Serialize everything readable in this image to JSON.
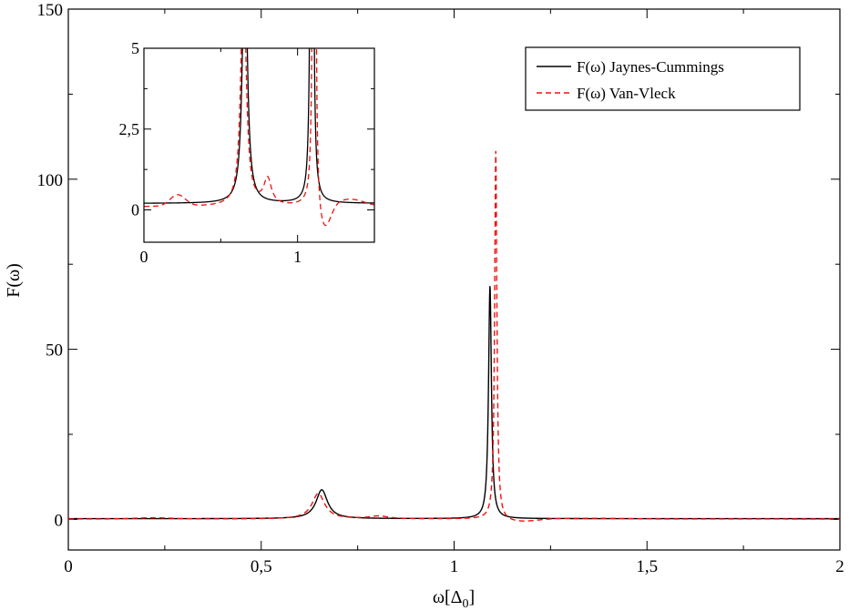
{
  "chart_data": {
    "type": "line",
    "xlabel": "ω[Δ0]",
    "xlabel_main": "ω[Δ",
    "xlabel_sub": "0",
    "xlabel_close": "]",
    "ylabel": "F(ω)",
    "xlim": [
      0,
      2
    ],
    "ylim": [
      -9,
      150
    ],
    "x_ticks": [
      {
        "value": 0,
        "label": "0"
      },
      {
        "value": 0.5,
        "label": "0,5"
      },
      {
        "value": 1,
        "label": "1"
      },
      {
        "value": 1.5,
        "label": "1,5"
      },
      {
        "value": 2,
        "label": "2"
      }
    ],
    "y_ticks": [
      {
        "value": 0,
        "label": "0"
      },
      {
        "value": 50,
        "label": "50"
      },
      {
        "value": 100,
        "label": "100"
      },
      {
        "value": 150,
        "label": "150"
      }
    ],
    "grid": false,
    "legend_position": "top-right",
    "series": [
      {
        "name": "F(ω) Jaynes-Cummings",
        "color": "#000000",
        "dash": "solid",
        "peaks": [
          {
            "center": 0.657,
            "height": 8.5,
            "width": 0.018
          },
          {
            "center": 1.093,
            "height": 68.5,
            "width": 0.0045
          }
        ],
        "baseline": 0.2
      },
      {
        "name": "F(ω) Van-Vleck",
        "color": "#ee1111",
        "dash": "dashed",
        "peaks": [
          {
            "center": 0.648,
            "height": 7.5,
            "width": 0.02
          },
          {
            "center": 0.805,
            "height": 0.8,
            "width": 0.03
          },
          {
            "center": 1.108,
            "height": 108.5,
            "width": 0.0035
          }
        ],
        "baseline": 0.1,
        "dip": {
          "center": 1.17,
          "depth": -0.9,
          "width": 0.06
        }
      }
    ],
    "inset": {
      "xlim": [
        0,
        1.5
      ],
      "ylim": [
        -1,
        5
      ],
      "x_ticks": [
        {
          "value": 0,
          "label": "0"
        },
        {
          "value": 1,
          "label": "1"
        }
      ],
      "y_ticks": [
        {
          "value": 0,
          "label": "0"
        },
        {
          "value": 2.5,
          "label": "2,5"
        },
        {
          "value": 5,
          "label": "5"
        }
      ]
    }
  }
}
